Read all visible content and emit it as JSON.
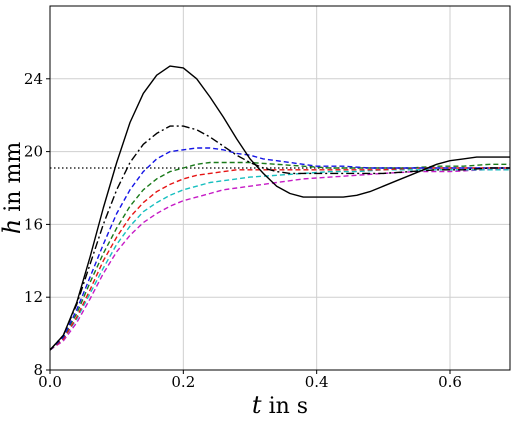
{
  "chart_data": {
    "type": "line",
    "title": "",
    "xlabel": {
      "symbol": "t",
      "rest": " in s"
    },
    "ylabel": {
      "symbol": "h",
      "rest": " in mm"
    },
    "xlim": [
      0.0,
      0.69
    ],
    "ylim": [
      8,
      28
    ],
    "xticks": [
      0.0,
      0.2,
      0.4,
      0.6
    ],
    "xtick_labels": [
      "0.0",
      "0.2",
      "0.4",
      "0.6"
    ],
    "yticks": [
      8,
      12,
      16,
      20,
      24
    ],
    "ytick_labels": [
      "8",
      "12",
      "16",
      "20",
      "24"
    ],
    "grid": true,
    "legend": "none",
    "reference_line": {
      "y": 19.1,
      "style": "dotted",
      "color": "#000000"
    },
    "series": [
      {
        "color": "#000000",
        "dash": "solid",
        "x": [
          0,
          0.02,
          0.04,
          0.06,
          0.08,
          0.1,
          0.12,
          0.14,
          0.16,
          0.18,
          0.2,
          0.22,
          0.24,
          0.26,
          0.28,
          0.3,
          0.32,
          0.34,
          0.36,
          0.38,
          0.4,
          0.42,
          0.44,
          0.46,
          0.48,
          0.5,
          0.52,
          0.54,
          0.56,
          0.58,
          0.6,
          0.62,
          0.64,
          0.66,
          0.68,
          0.69
        ],
        "y": [
          9.1,
          9.9,
          11.7,
          14.2,
          16.9,
          19.4,
          21.6,
          23.2,
          24.2,
          24.7,
          24.6,
          24.0,
          23.0,
          21.9,
          20.7,
          19.6,
          18.8,
          18.1,
          17.7,
          17.5,
          17.5,
          17.5,
          17.5,
          17.6,
          17.8,
          18.1,
          18.4,
          18.7,
          19.0,
          19.3,
          19.5,
          19.6,
          19.7,
          19.7,
          19.7,
          19.7
        ]
      },
      {
        "color": "#000000",
        "dash": "dashdot",
        "x": [
          0,
          0.02,
          0.04,
          0.06,
          0.08,
          0.1,
          0.12,
          0.14,
          0.16,
          0.18,
          0.2,
          0.22,
          0.24,
          0.26,
          0.28,
          0.3,
          0.32,
          0.34,
          0.36,
          0.38,
          0.4,
          0.42,
          0.44,
          0.46,
          0.48,
          0.5,
          0.54,
          0.58,
          0.62,
          0.66,
          0.69
        ],
        "y": [
          9.1,
          9.9,
          11.6,
          13.8,
          16.0,
          17.9,
          19.4,
          20.4,
          21.0,
          21.4,
          21.4,
          21.2,
          20.8,
          20.3,
          19.8,
          19.4,
          19.1,
          18.9,
          18.8,
          18.8,
          18.8,
          18.8,
          18.8,
          18.8,
          18.8,
          18.8,
          18.9,
          19.0,
          19.0,
          19.1,
          19.1
        ]
      },
      {
        "color": "#1515e6",
        "dash": "dashed",
        "x": [
          0,
          0.02,
          0.04,
          0.06,
          0.08,
          0.1,
          0.12,
          0.14,
          0.16,
          0.18,
          0.2,
          0.22,
          0.24,
          0.26,
          0.28,
          0.3,
          0.32,
          0.34,
          0.36,
          0.38,
          0.4,
          0.44,
          0.48,
          0.52,
          0.56,
          0.6,
          0.64,
          0.69
        ],
        "y": [
          9.1,
          9.8,
          11.3,
          13.1,
          14.9,
          16.6,
          17.9,
          18.9,
          19.6,
          20.0,
          20.1,
          20.2,
          20.2,
          20.1,
          19.9,
          19.8,
          19.6,
          19.5,
          19.4,
          19.3,
          19.2,
          19.2,
          19.1,
          19.1,
          19.1,
          19.1,
          19.1,
          19.1
        ]
      },
      {
        "color": "#1a7a1a",
        "dash": "dashed",
        "x": [
          0,
          0.02,
          0.04,
          0.06,
          0.08,
          0.1,
          0.12,
          0.14,
          0.16,
          0.18,
          0.2,
          0.22,
          0.24,
          0.26,
          0.28,
          0.3,
          0.34,
          0.38,
          0.42,
          0.46,
          0.5,
          0.54,
          0.58,
          0.62,
          0.66,
          0.69
        ],
        "y": [
          9.1,
          9.8,
          11.1,
          12.8,
          14.4,
          15.8,
          17.0,
          17.9,
          18.5,
          18.9,
          19.1,
          19.3,
          19.4,
          19.4,
          19.4,
          19.4,
          19.3,
          19.2,
          19.1,
          19.1,
          19.1,
          19.1,
          19.2,
          19.2,
          19.3,
          19.3
        ]
      },
      {
        "color": "#e61515",
        "dash": "dashed",
        "x": [
          0,
          0.02,
          0.04,
          0.06,
          0.08,
          0.1,
          0.12,
          0.14,
          0.16,
          0.18,
          0.2,
          0.22,
          0.24,
          0.26,
          0.28,
          0.3,
          0.34,
          0.38,
          0.42,
          0.46,
          0.5,
          0.55,
          0.6,
          0.65,
          0.69
        ],
        "y": [
          9.1,
          9.7,
          10.9,
          12.4,
          14.0,
          15.3,
          16.4,
          17.2,
          17.8,
          18.2,
          18.5,
          18.7,
          18.8,
          18.9,
          19.0,
          19.0,
          19.0,
          19.0,
          19.0,
          19.0,
          19.0,
          19.1,
          19.1,
          19.1,
          19.1
        ]
      },
      {
        "color": "#17bfbf",
        "dash": "dashed",
        "x": [
          0,
          0.02,
          0.04,
          0.06,
          0.08,
          0.1,
          0.12,
          0.14,
          0.16,
          0.18,
          0.2,
          0.22,
          0.24,
          0.26,
          0.28,
          0.3,
          0.34,
          0.38,
          0.42,
          0.46,
          0.5,
          0.55,
          0.6,
          0.65,
          0.69
        ],
        "y": [
          9.1,
          9.7,
          10.8,
          12.2,
          13.6,
          14.9,
          15.9,
          16.7,
          17.2,
          17.6,
          17.9,
          18.1,
          18.3,
          18.4,
          18.5,
          18.6,
          18.7,
          18.8,
          18.9,
          18.9,
          19.0,
          19.0,
          19.0,
          19.0,
          19.0
        ]
      },
      {
        "color": "#c61bc6",
        "dash": "dashed",
        "x": [
          0,
          0.02,
          0.04,
          0.06,
          0.08,
          0.1,
          0.12,
          0.14,
          0.16,
          0.18,
          0.2,
          0.22,
          0.24,
          0.26,
          0.28,
          0.3,
          0.34,
          0.38,
          0.42,
          0.46,
          0.5,
          0.55,
          0.6,
          0.65,
          0.69
        ],
        "y": [
          9.1,
          9.6,
          10.6,
          11.9,
          13.3,
          14.5,
          15.4,
          16.1,
          16.6,
          17.0,
          17.3,
          17.5,
          17.7,
          17.9,
          18.0,
          18.1,
          18.3,
          18.5,
          18.6,
          18.7,
          18.8,
          18.9,
          18.9,
          19.0,
          19.0
        ]
      }
    ]
  }
}
